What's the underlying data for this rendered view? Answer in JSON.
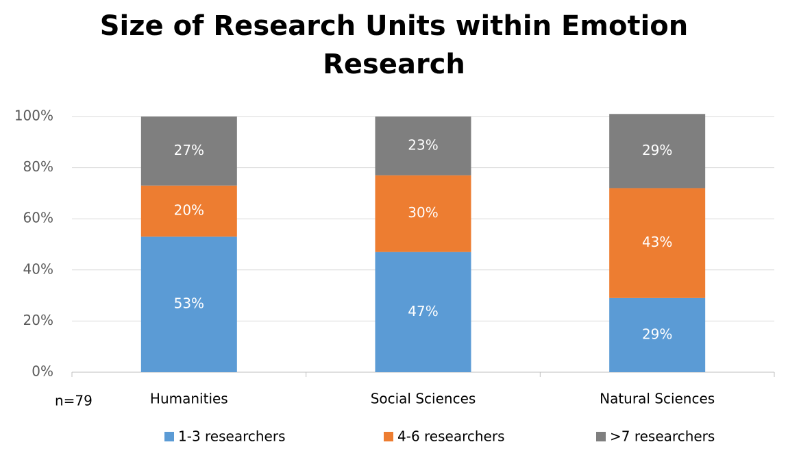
{
  "chart_data": {
    "type": "bar",
    "stacked": true,
    "title": "Size of Research Units within Emotion Research",
    "annotation": "n=79",
    "categories": [
      "Humanities",
      "Social Sciences",
      "Natural Sciences"
    ],
    "series": [
      {
        "name": "1-3 researchers",
        "color": "#5b9bd5",
        "values": [
          53,
          47,
          29
        ],
        "value_labels": [
          "53%",
          "47%",
          "29%"
        ]
      },
      {
        "name": "4-6 researchers",
        "color": "#ed7d31",
        "values": [
          20,
          30,
          43
        ],
        "value_labels": [
          "20%",
          "30%",
          "43%"
        ]
      },
      {
        "name": ">7 researchers",
        "color": "#7f7f7f",
        "values": [
          27,
          23,
          29
        ],
        "value_labels": [
          "27%",
          "23%",
          "29%"
        ]
      }
    ],
    "ylim": [
      0,
      100
    ],
    "yticks": [
      {
        "value": 0,
        "label": "0%"
      },
      {
        "value": 20,
        "label": "20%"
      },
      {
        "value": 40,
        "label": "40%"
      },
      {
        "value": 60,
        "label": "60%"
      },
      {
        "value": 80,
        "label": "80%"
      },
      {
        "value": 100,
        "label": "100%"
      }
    ],
    "grid": true,
    "legend": "bottom"
  }
}
